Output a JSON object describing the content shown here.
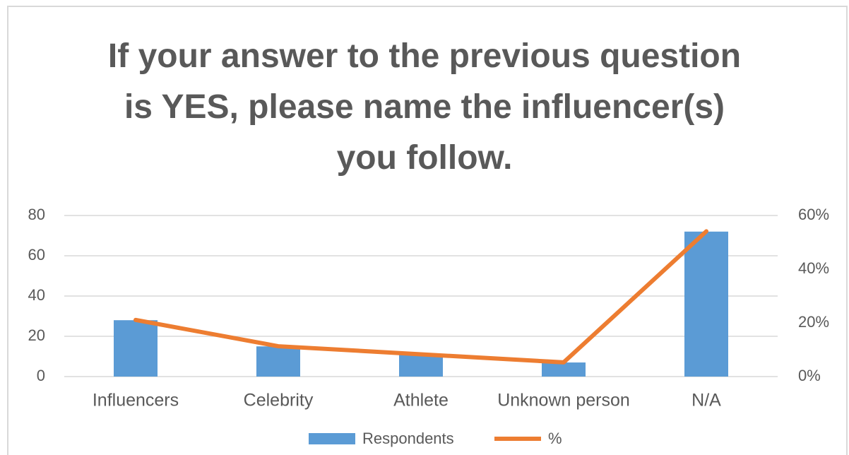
{
  "chart_data": {
    "type": "bar_line",
    "title": "If your answer to the previous question is YES, please name the influencer(s) you follow.",
    "categories": [
      "Influencers",
      "Celebrity",
      "Athlete",
      "Unknown person",
      "N/A"
    ],
    "series": [
      {
        "name": "Respondents",
        "color": "#5b9bd5",
        "type": "bar",
        "values": [
          28,
          15,
          11,
          7,
          72
        ]
      },
      {
        "name": "%",
        "color": "#ed7d31",
        "type": "line",
        "axis": "y2",
        "values": [
          21.1,
          11.3,
          8.3,
          5.3,
          54.1
        ]
      }
    ],
    "ylim": [
      0,
      80
    ],
    "yticks": [
      0,
      20,
      40,
      60,
      80
    ],
    "y2lim": [
      0,
      60
    ],
    "y2ticks": [
      {
        "value": 0,
        "label": "0%"
      },
      {
        "value": 20,
        "label": "20%"
      },
      {
        "value": 40,
        "label": "40%"
      },
      {
        "value": 60,
        "label": "60%"
      }
    ],
    "grid": true,
    "legend": "bottom"
  }
}
